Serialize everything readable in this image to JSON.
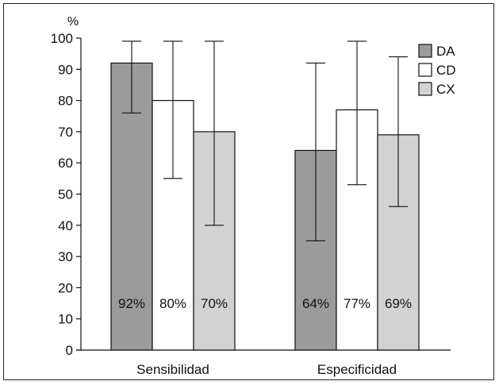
{
  "chart_data": {
    "type": "bar",
    "categories": [
      "Sensibilidad",
      "Especificidad"
    ],
    "ylabel": "%",
    "ylim": [
      0,
      100
    ],
    "yticks": [
      0,
      10,
      20,
      30,
      40,
      50,
      60,
      70,
      80,
      90,
      100
    ],
    "grid": false,
    "legend_position": "top-right",
    "series": [
      {
        "name": "DA",
        "color": "#9b9b9b",
        "values": [
          92,
          64
        ],
        "labels": [
          "92%",
          "64%"
        ],
        "err_low": [
          76,
          35
        ],
        "err_high": [
          99,
          92
        ]
      },
      {
        "name": "CD",
        "color": "#ffffff",
        "values": [
          80,
          77
        ],
        "labels": [
          "80%",
          "77%"
        ],
        "err_low": [
          55,
          53
        ],
        "err_high": [
          99,
          99
        ]
      },
      {
        "name": "CX",
        "color": "#d2d2d2",
        "values": [
          70,
          69
        ],
        "labels": [
          "70%",
          "69%"
        ],
        "err_low": [
          40,
          46
        ],
        "err_high": [
          99,
          94
        ]
      }
    ]
  }
}
